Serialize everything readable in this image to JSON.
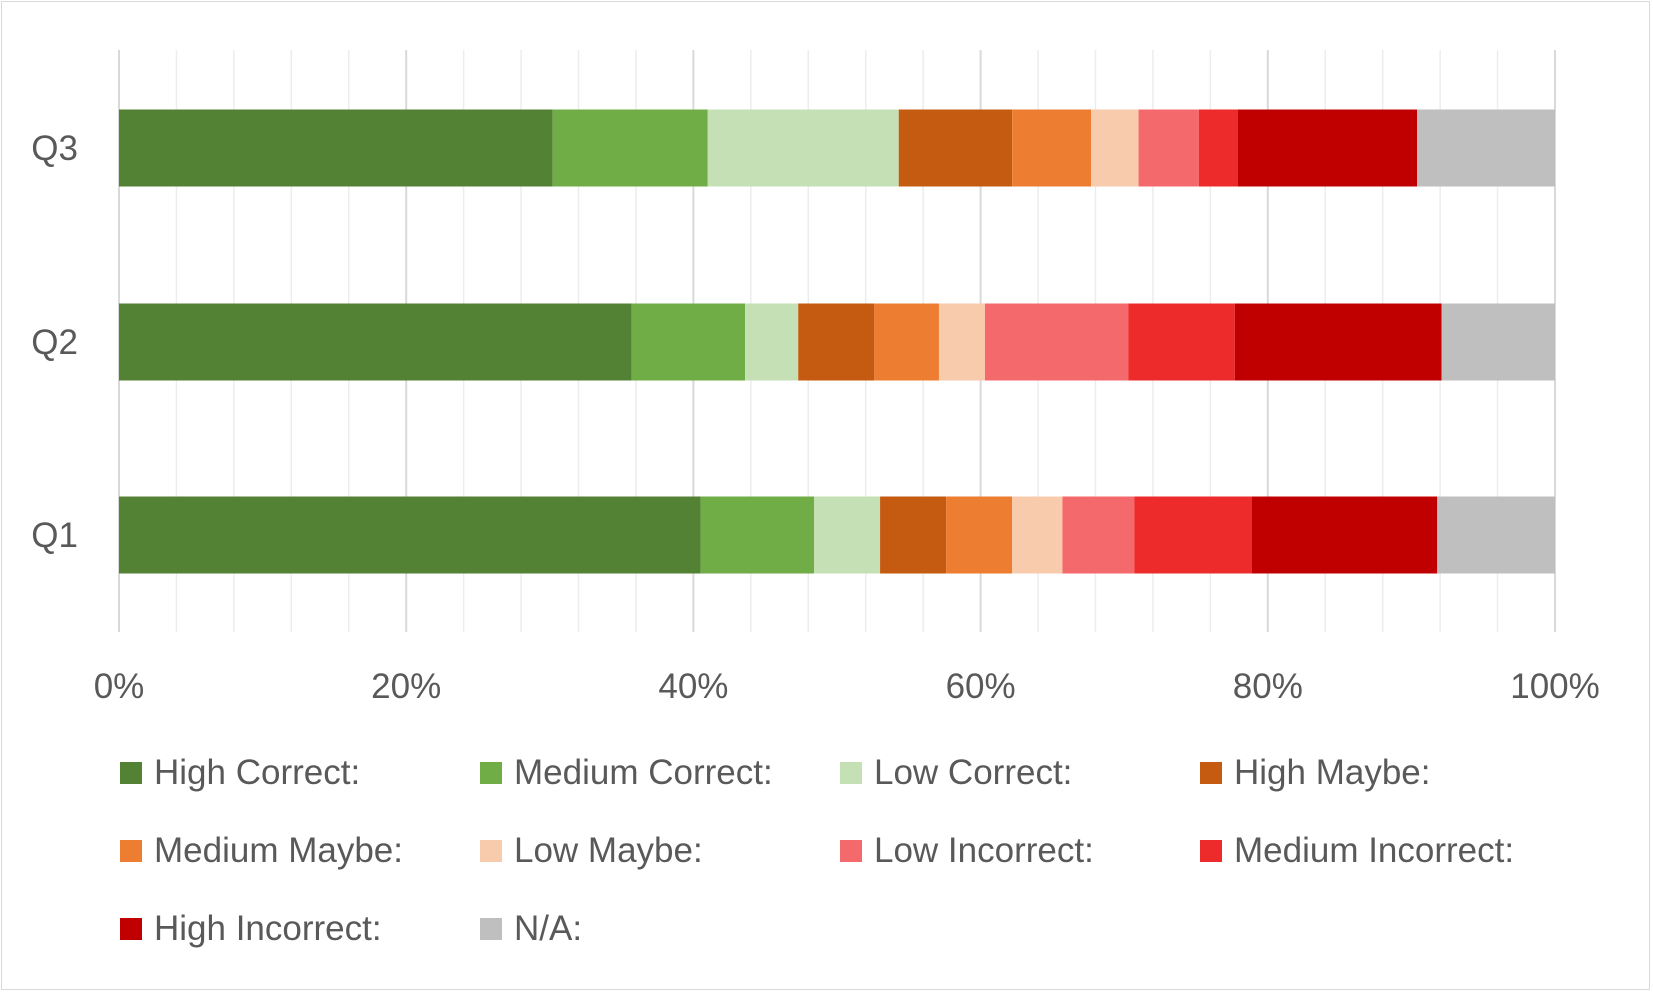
{
  "chart_data": {
    "type": "bar",
    "orientation": "horizontal",
    "stacked": true,
    "percent_stacked": true,
    "title": "",
    "xlabel": "",
    "ylabel": "",
    "xlim": [
      0,
      100
    ],
    "x_ticks": [
      "0%",
      "20%",
      "40%",
      "60%",
      "80%",
      "100%"
    ],
    "grid": "vertical major and minor",
    "legend_position": "bottom",
    "categories": [
      "Q3",
      "Q2",
      "Q1"
    ],
    "series": [
      {
        "name": "High Correct:",
        "color": "#548235",
        "values": [
          30.2,
          35.7,
          40.5
        ]
      },
      {
        "name": "Medium Correct:",
        "color": "#70ad47",
        "values": [
          10.8,
          7.9,
          7.9
        ]
      },
      {
        "name": "Low Correct:",
        "color": "#c5e0b4",
        "values": [
          13.3,
          3.7,
          4.6
        ]
      },
      {
        "name": "High Maybe:",
        "color": "#c55a11",
        "values": [
          7.9,
          5.3,
          4.6
        ]
      },
      {
        "name": "Medium Maybe:",
        "color": "#ed7d31",
        "values": [
          5.5,
          4.5,
          4.6
        ]
      },
      {
        "name": "Low Maybe:",
        "color": "#f8cbad",
        "values": [
          3.3,
          3.2,
          3.5
        ]
      },
      {
        "name": "Low Incorrect:",
        "color": "#f4696b",
        "values": [
          4.2,
          10.0,
          5.0
        ]
      },
      {
        "name": "Medium Incorrect:",
        "color": "#ee2b2b",
        "values": [
          2.7,
          7.4,
          8.2
        ]
      },
      {
        "name": "High Incorrect:",
        "color": "#c00000",
        "values": [
          12.5,
          14.4,
          12.9
        ]
      },
      {
        "name": "N/A:",
        "color": "#bfbfbf",
        "values": [
          9.6,
          7.9,
          8.2
        ]
      }
    ]
  }
}
